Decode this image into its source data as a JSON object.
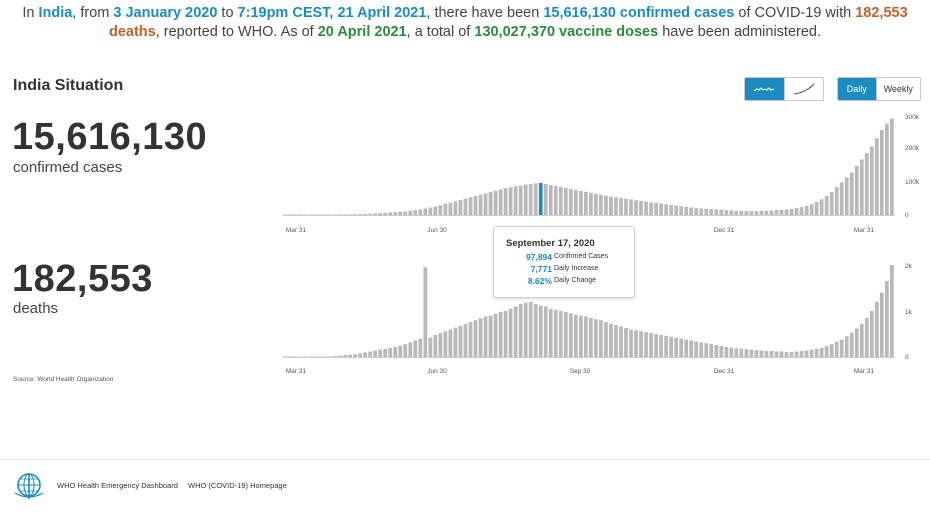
{
  "summary": {
    "p1": "In ",
    "country": "India",
    "p2": ", from ",
    "date_from": "3 January 2020",
    "p3": " to ",
    "date_to": "7:19pm CEST, 21 April 2021",
    "p4": ", there have been ",
    "cases_text": "15,616,130 confirmed cases",
    "p5": " of COVID-19 with ",
    "deaths_text": "182,553 deaths",
    "p6": ", reported to WHO. As of ",
    "vaccine_date": "20 April 2021",
    "p7": ", a total of ",
    "vaccine_text": "130,027,370 vaccine doses",
    "p8": " have been administered."
  },
  "situation": {
    "title": "India Situation",
    "cases_value": "15,616,130",
    "cases_label": "confirmed cases",
    "deaths_value": "182,553",
    "deaths_label": "deaths"
  },
  "toggles": {
    "daily_label": "Daily",
    "weekly_label": "Weekly",
    "selected_period": "Daily",
    "selected_chart_style": "bar-sparkline",
    "style_icons": [
      "wave-line-icon",
      "cumulative-curve-icon"
    ],
    "accent_color": "#1c8bc4"
  },
  "tooltip": {
    "date": "September 17, 2020",
    "rows": [
      {
        "value": "97,894",
        "label": "Confirmed Cases"
      },
      {
        "value": "7,771",
        "label": "Daily Increase"
      },
      {
        "value": "8.62%",
        "label": "Daily Change"
      }
    ]
  },
  "source": "Source: World Health Organization",
  "footer": {
    "link1": "WHO Health Emergency Dashboard",
    "link2": "WHO (COVID-19) Homepage"
  },
  "chart_data": [
    {
      "type": "bar",
      "name": "confirmed-cases",
      "x_ticks": [
        "Mar 31",
        "Jun 30",
        "Sep 30",
        "Dec 31",
        "Mar 31"
      ],
      "y_ticks": [
        "300k",
        "200k",
        "100k",
        "0"
      ],
      "ylim": [
        0,
        300000
      ],
      "highlight": "September 17, 2020",
      "values": [
        0,
        0,
        0,
        0,
        0,
        0,
        0,
        0,
        0,
        0,
        500,
        1000,
        1500,
        2000,
        2500,
        3000,
        3500,
        4000,
        5000,
        6000,
        7000,
        8000,
        9000,
        10000,
        11000,
        13000,
        15000,
        17000,
        20000,
        23000,
        26000,
        30000,
        34000,
        38000,
        42000,
        46000,
        50000,
        54000,
        58000,
        62000,
        66000,
        70000,
        74000,
        78000,
        82000,
        85000,
        88000,
        90000,
        93000,
        95000,
        97000,
        97894,
        95000,
        92000,
        89000,
        86000,
        83000,
        80000,
        77000,
        74000,
        71000,
        68000,
        65000,
        62000,
        59000,
        56000,
        54000,
        52000,
        50000,
        48000,
        45000,
        43000,
        41000,
        39000,
        37000,
        35000,
        33000,
        31000,
        29000,
        27000,
        25000,
        23000,
        21000,
        20000,
        19000,
        18000,
        17000,
        16000,
        15000,
        14000,
        13000,
        13000,
        12000,
        12000,
        12000,
        13000,
        13000,
        14000,
        15000,
        16000,
        17000,
        19000,
        21000,
        24000,
        28000,
        33000,
        40000,
        48000,
        58000,
        70000,
        85000,
        100000,
        115000,
        130000,
        150000,
        170000,
        190000,
        210000,
        235000,
        260000,
        280000,
        295000
      ]
    },
    {
      "type": "bar",
      "name": "deaths",
      "x_ticks": [
        "Mar 31",
        "Jun 30",
        "Sep 30",
        "Dec 31",
        "Mar 31"
      ],
      "y_ticks": [
        "2k",
        "1k",
        "0"
      ],
      "ylim": [
        0,
        2000
      ],
      "values": [
        0,
        0,
        0,
        0,
        0,
        0,
        0,
        0,
        5,
        10,
        20,
        30,
        40,
        50,
        60,
        80,
        100,
        120,
        140,
        160,
        180,
        200,
        220,
        250,
        280,
        320,
        360,
        400,
        1950,
        420,
        480,
        520,
        560,
        600,
        640,
        680,
        720,
        760,
        800,
        840,
        880,
        900,
        940,
        980,
        1000,
        1050,
        1100,
        1150,
        1180,
        1200,
        1150,
        1120,
        1100,
        1050,
        1020,
        1000,
        980,
        950,
        920,
        900,
        880,
        850,
        820,
        800,
        760,
        720,
        690,
        660,
        630,
        600,
        580,
        560,
        540,
        520,
        500,
        480,
        460,
        440,
        420,
        400,
        380,
        360,
        340,
        320,
        300,
        280,
        260,
        240,
        220,
        200,
        190,
        180,
        170,
        160,
        150,
        140,
        130,
        130,
        120,
        120,
        110,
        110,
        120,
        130,
        140,
        160,
        180,
        200,
        240,
        280,
        330,
        380,
        450,
        530,
        620,
        720,
        850,
        1000,
        1200,
        1400,
        1650,
        2000
      ]
    }
  ]
}
